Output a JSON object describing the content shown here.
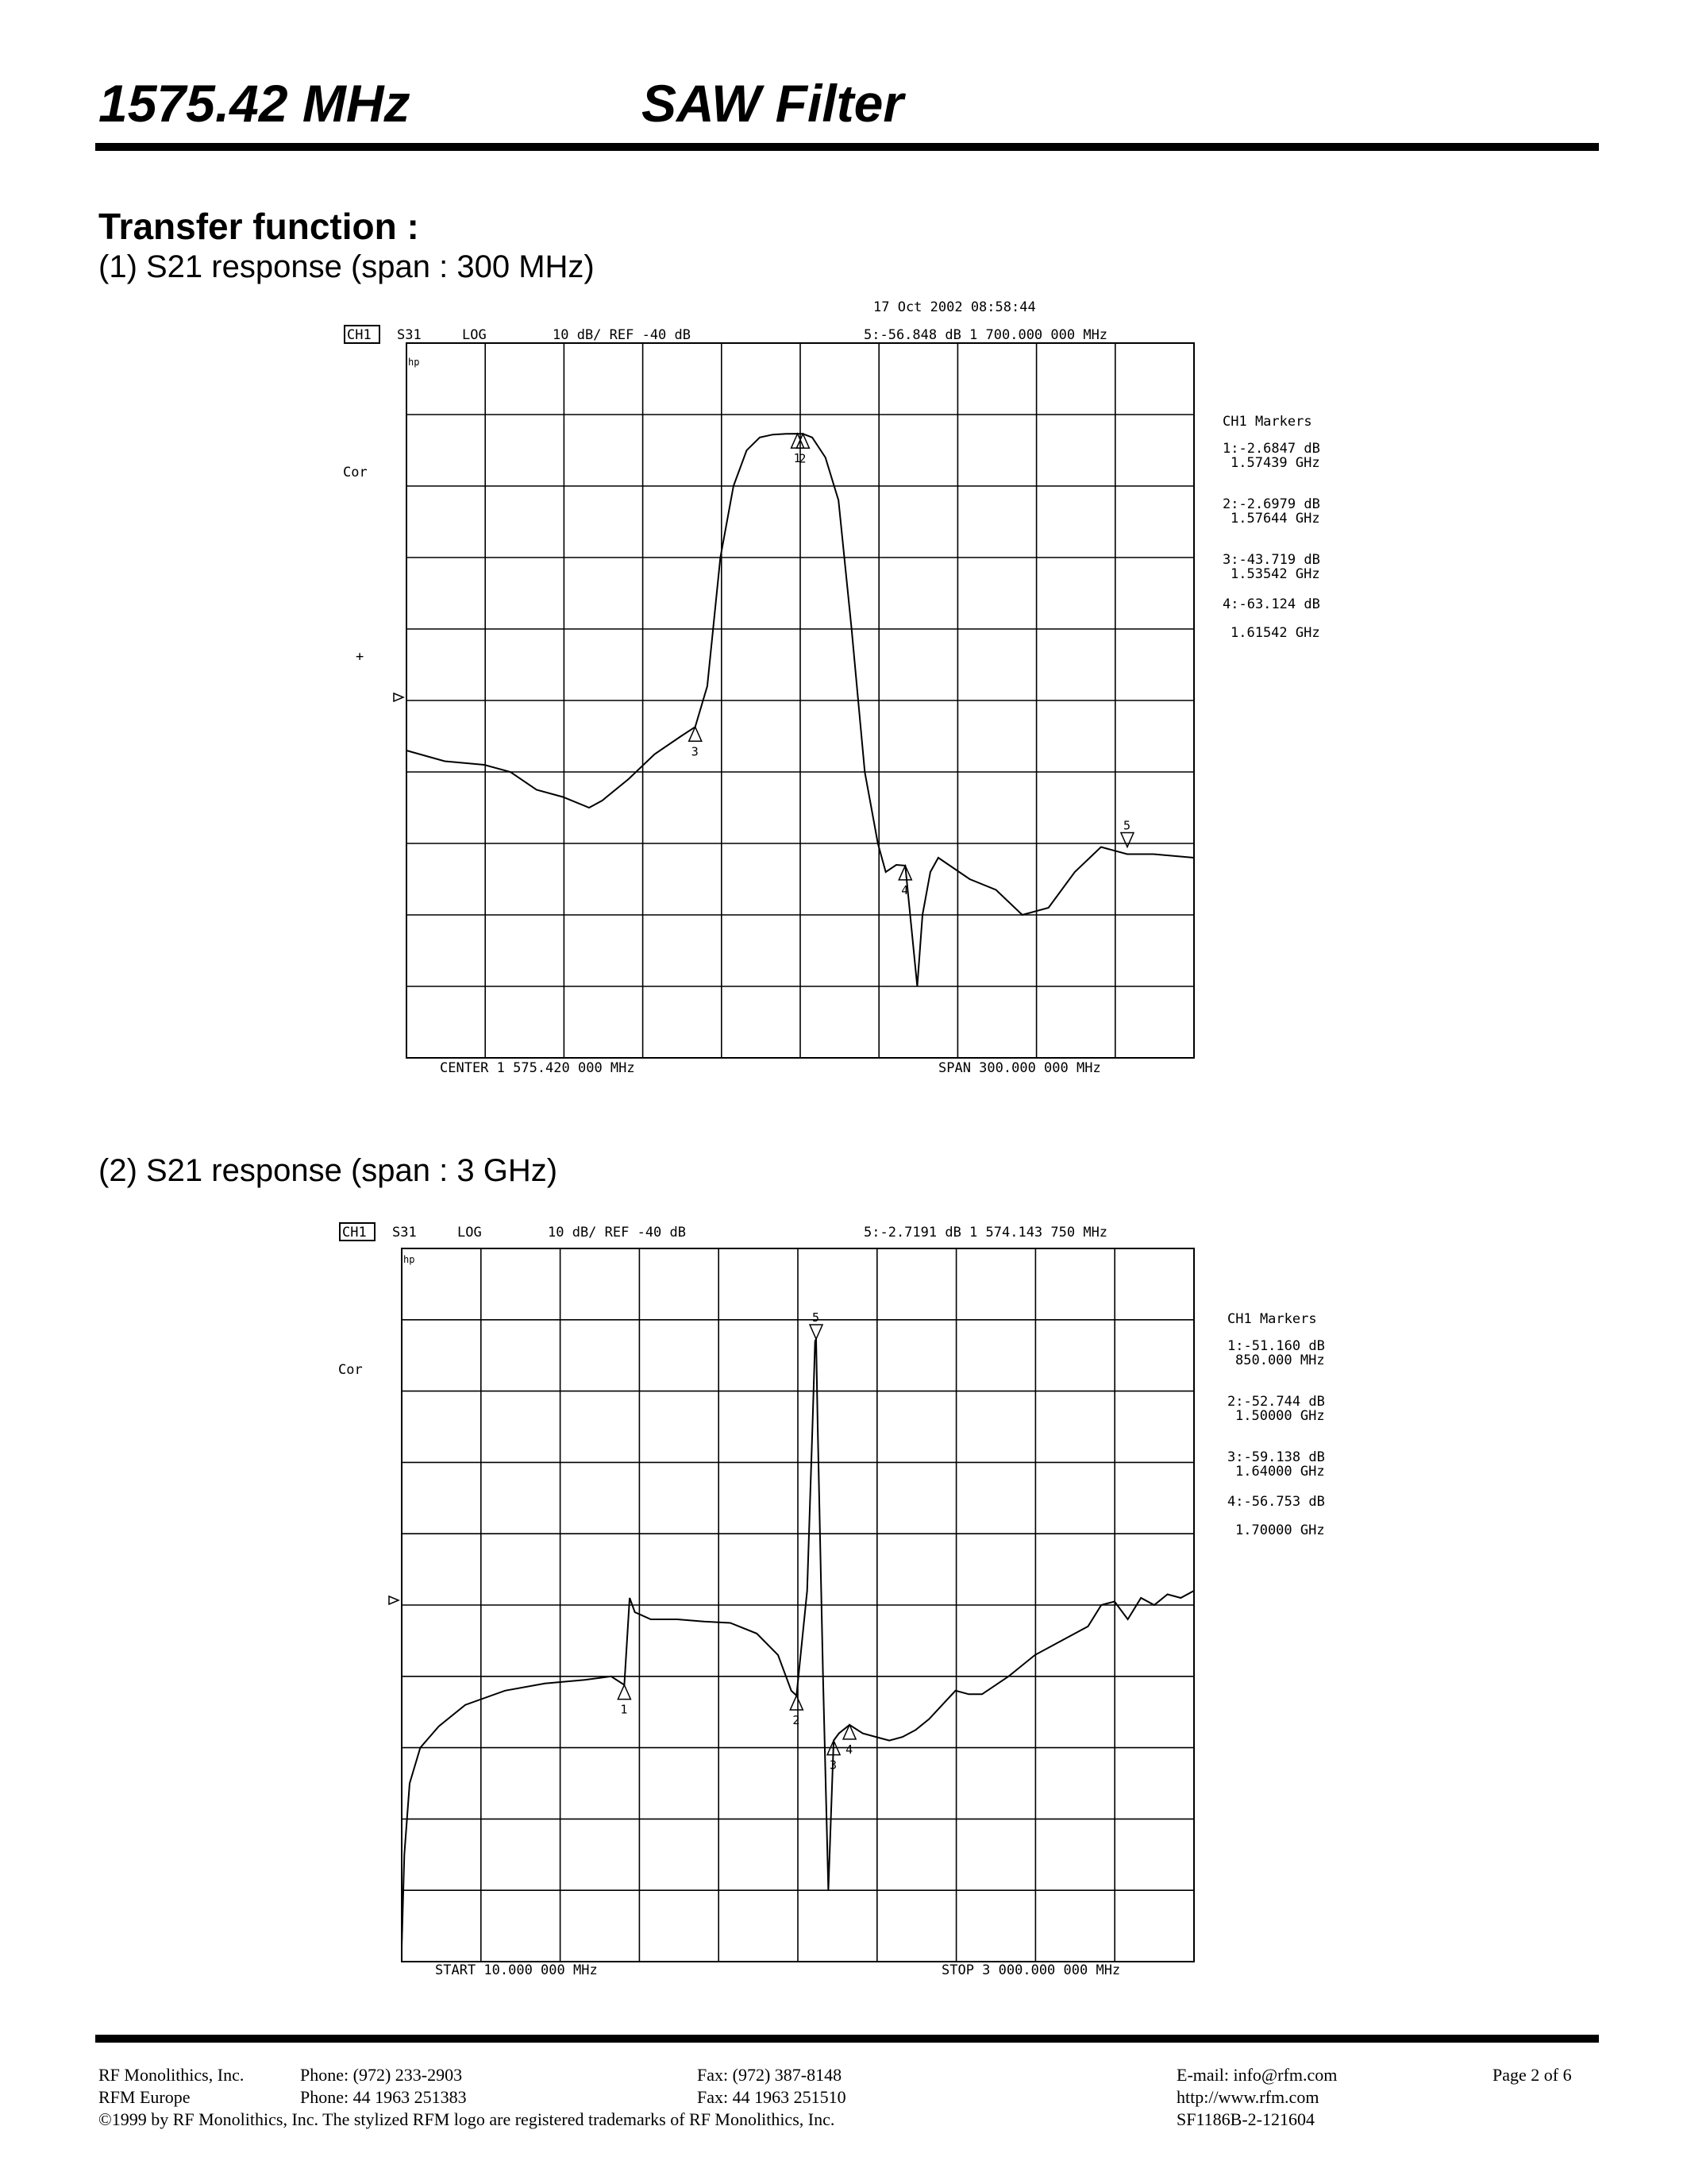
{
  "header": {
    "frequency": "1575.42 MHz",
    "product": "SAW Filter"
  },
  "section_title": "Transfer function :",
  "chart1_caption": "(1) S21 response (span : 300 MHz)",
  "chart2_caption": "(2) S21 response (span : 3 GHz)",
  "charts": [
    {
      "timestamp": "17 Oct 2002   08:58:44",
      "channel": "CH1",
      "param": "S31",
      "format": "LOG",
      "scale": "10 dB/ REF -40 dB",
      "active_marker": "5:-56.848 dB    1 700.000 000 MHz",
      "left_label_1": "Cor",
      "left_label_2": "+",
      "footer_left": "CENTER 1 575.420 000 MHz",
      "footer_right": "SPAN  300.000 000 MHz",
      "markers_title": "CH1 Markers",
      "markers": [
        {
          "value": "1:-2.6847 dB",
          "freq": "1.57439 GHz"
        },
        {
          "value": "2:-2.6979 dB",
          "freq": "1.57644 GHz"
        },
        {
          "value": "3:-43.719 dB",
          "freq": "1.53542 GHz"
        },
        {
          "value": "4:-63.124 dB",
          "freq": "1.61542 GHz"
        }
      ]
    },
    {
      "channel": "CH1",
      "param": "S31",
      "format": "LOG",
      "scale": "10 dB/ REF -40 dB",
      "active_marker": "5:-2.7191 dB    1 574.143 750 MHz",
      "left_label_1": "Cor",
      "footer_left": "START   10.000 000 MHz",
      "footer_right": "STOP 3 000.000 000 MHz",
      "markers_title": "CH1 Markers",
      "markers": [
        {
          "value": "1:-51.160 dB",
          "freq": "850.000 MHz"
        },
        {
          "value": "2:-52.744 dB",
          "freq": "1.50000 GHz"
        },
        {
          "value": "3:-59.138 dB",
          "freq": "1.64000 GHz"
        },
        {
          "value": "4:-56.753 dB",
          "freq": "1.70000 GHz"
        }
      ]
    }
  ],
  "chart_data": [
    {
      "type": "line",
      "title": "",
      "xlabel": "",
      "ylabel": "",
      "xlim": [
        1425.42,
        1725.42
      ],
      "ylim": [
        -90,
        10
      ],
      "grid": true,
      "series": [
        {
          "x": [
            1425.42,
            1440,
            1455,
            1465,
            1475,
            1485,
            1495,
            1500,
            1510,
            1520,
            1530,
            1535.42,
            1540,
            1545,
            1550,
            1555,
            1560,
            1565,
            1570,
            1574.39,
            1576.44,
            1580,
            1585,
            1590,
            1595,
            1600,
            1605,
            1608,
            1612,
            1615.42,
            1620,
            1622,
            1625,
            1628,
            1632,
            1640,
            1650,
            1660,
            1670,
            1680,
            1690,
            1700,
            1710,
            1725.42
          ],
          "y": [
            -47,
            -48.5,
            -49,
            -50,
            -52.5,
            -53.5,
            -55,
            -54,
            -51,
            -47.5,
            -45,
            -43.7,
            -38,
            -20,
            -10,
            -5,
            -3.2,
            -2.8,
            -2.7,
            -2.68,
            -2.7,
            -3.2,
            -6,
            -12,
            -30,
            -50,
            -60,
            -64,
            -63,
            -63.1,
            -80,
            -70,
            -64,
            -62,
            -63,
            -65,
            -66.5,
            -70,
            -69,
            -64,
            -60.5,
            -61.5,
            -61.5,
            -62
          ]
        }
      ]
    },
    {
      "type": "line",
      "title": "",
      "xlabel": "",
      "ylabel": "",
      "xlim": [
        10,
        3000
      ],
      "ylim": [
        -90,
        10
      ],
      "grid": true,
      "series": [
        {
          "x": [
            10,
            20,
            40,
            80,
            150,
            250,
            400,
            550,
            700,
            800,
            850,
            870,
            890,
            950,
            1050,
            1150,
            1250,
            1350,
            1430,
            1480,
            1500,
            1540,
            1560,
            1570,
            1574,
            1580,
            1600,
            1620,
            1640,
            1660,
            1700,
            1750,
            1800,
            1850,
            1900,
            1950,
            2000,
            2050,
            2100,
            2150,
            2200,
            2300,
            2400,
            2500,
            2600,
            2650,
            2700,
            2750,
            2800,
            2850,
            2900,
            2950,
            3000
          ],
          "y": [
            -88,
            -75,
            -65,
            -60,
            -57,
            -54,
            -52,
            -51,
            -50.5,
            -50,
            -51.2,
            -39,
            -41,
            -42,
            -42,
            -42.3,
            -42.5,
            -44,
            -47,
            -52,
            -52.7,
            -38,
            -15,
            -3,
            -2.7,
            -15,
            -50,
            -80,
            -59,
            -58,
            -56.8,
            -58,
            -58.5,
            -59,
            -58.5,
            -57.5,
            -56,
            -54,
            -52,
            -52.5,
            -52.5,
            -50,
            -47,
            -45,
            -43,
            -40,
            -39.5,
            -42,
            -39,
            -40,
            -38.5,
            -39,
            -38
          ]
        }
      ]
    }
  ],
  "footer": {
    "company": "RF Monolithics, Inc.",
    "phone": "Phone: (972) 233-2903",
    "fax": "Fax: (972) 387-8148",
    "email": "E-mail: info@rfm.com",
    "page": "Page 2 of 6",
    "europe": "RFM Europe",
    "phone_eu": "Phone:  44 1963 251383",
    "fax_eu": "Fax:  44 1963 251510",
    "url": "http://www.rfm.com",
    "copyright": "©1999 by RF Monolithics, Inc.  The stylized RFM logo are registered trademarks of RF Monolithics, Inc.",
    "doc_id": "SF1186B-2-121604"
  }
}
